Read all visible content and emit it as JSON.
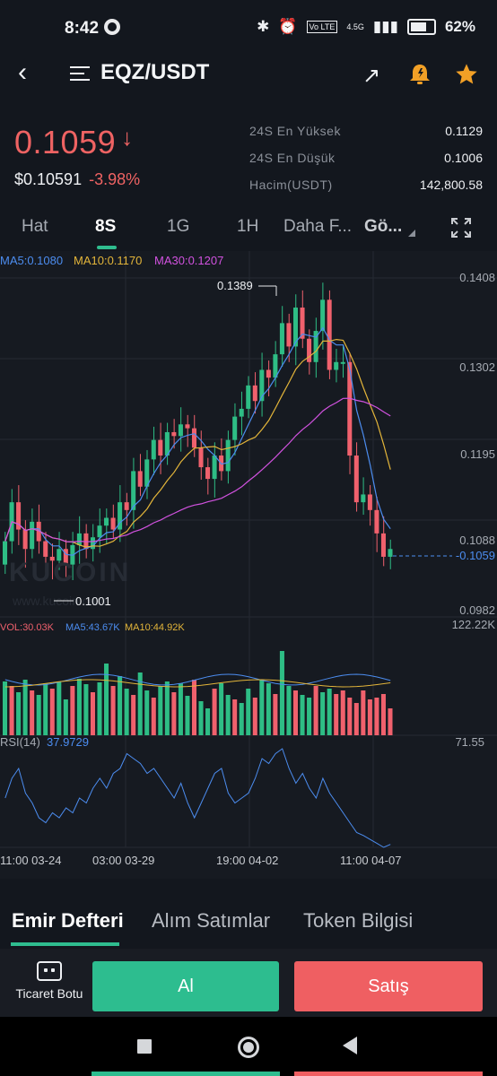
{
  "status_bar": {
    "time": "8:42",
    "volte": "Vo LTE",
    "network": "4.5G",
    "battery": "62%"
  },
  "header": {
    "pair": "EQZ/USDT",
    "icons": [
      "back-icon",
      "menu-icon",
      "share-icon",
      "alert-icon",
      "star-icon"
    ]
  },
  "price": {
    "last": "0.1059",
    "usd": "$0.10591",
    "change": "-3.98%"
  },
  "stats": [
    {
      "label": "24S En Yüksek",
      "value": "0.1129"
    },
    {
      "label": "24S En Düşük",
      "value": "0.1006"
    },
    {
      "label": "Hacim(USDT)",
      "value": "142,800.58"
    }
  ],
  "timeframe_tabs": [
    "Hat",
    "8S",
    "1G",
    "1H",
    "Daha F...",
    "Gö..."
  ],
  "active_timeframe": "8S",
  "chart_data": {
    "type": "candlestick",
    "ma_labels": {
      "ma5": "MA5:0.1080",
      "ma10": "MA10:0.1170",
      "ma30": "MA30:0.1207"
    },
    "y_ticks": [
      "0.1408",
      "0.1302",
      "0.1195",
      "0.1088",
      "0.0982"
    ],
    "current_price_label": "0.1059",
    "high_label": "0.1389",
    "low_label": "0.1001",
    "watermark": "KUCOIN",
    "watermark_url": "www.kucoin.com",
    "volume_labels": {
      "vol": "VOL:30.03K",
      "ma5": "MA5:43.67K",
      "ma10": "MA10:44.92K",
      "max": "122.22K"
    },
    "rsi_labels": {
      "title": "RSI(14)",
      "value": "37.9729",
      "max": "71.55"
    },
    "x_ticks": [
      "11:00 03-24",
      "03:00 03-29",
      "19:00 04-02",
      "11:00 04-07"
    ],
    "colors": {
      "up": "#2ebd85",
      "down": "#f0616d",
      "ma5": "#4c8df0",
      "ma10": "#e3b53a",
      "ma30": "#d252e0",
      "rsi": "#4c8df0"
    }
  },
  "bottom_tabs": [
    "Emir Defteri",
    "Alım Satımlar",
    "Token Bilgisi"
  ],
  "action_bar": {
    "bot_label": "Ticaret Botu",
    "buy_label": "Al",
    "sell_label": "Satış"
  }
}
